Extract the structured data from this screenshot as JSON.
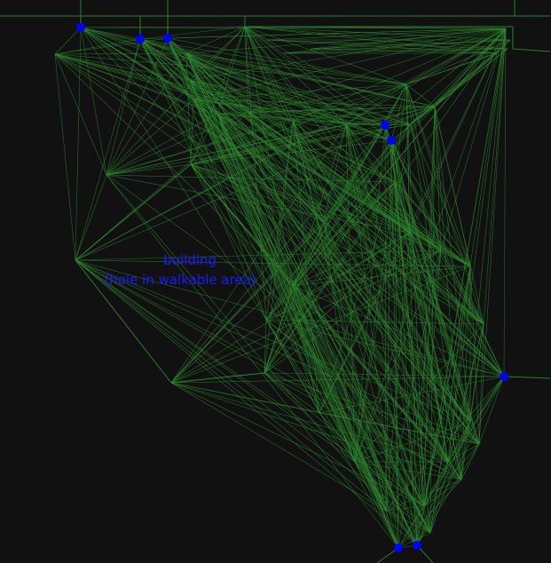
{
  "colors": {
    "background": "#111111",
    "edge": "#2e8b2e",
    "node": "#0000ff",
    "label": "#1a1aff"
  },
  "label": {
    "line1": "building",
    "line2": "(hole in walkable area)"
  }
}
